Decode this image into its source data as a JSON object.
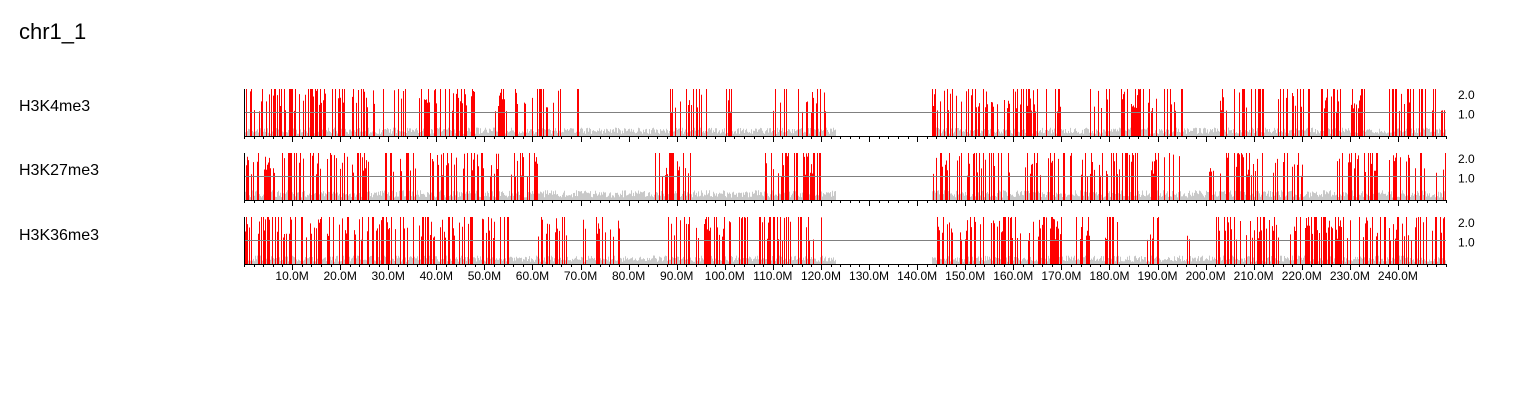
{
  "title": "chr1_1",
  "colors": {
    "signal": "#ff0000",
    "background": "#c8c8c8",
    "axis": "#000000",
    "reference_line": "#808080"
  },
  "chart_data": {
    "type": "area",
    "title": "chr1_1",
    "x_unit": "Mb",
    "xlim": [
      0,
      250
    ],
    "x_ticks": [
      10,
      20,
      30,
      40,
      50,
      60,
      70,
      80,
      90,
      100,
      110,
      120,
      130,
      140,
      150,
      160,
      170,
      180,
      190,
      200,
      210,
      220,
      230,
      240
    ],
    "x_tick_labels": [
      "10.0M",
      "20.0M",
      "30.0M",
      "40.0M",
      "50.0M",
      "60.0M",
      "70.0M",
      "80.0M",
      "90.0M",
      "100.0M",
      "110.0M",
      "120.0M",
      "130.0M",
      "140.0M",
      "150.0M",
      "160.0M",
      "170.0M",
      "180.0M",
      "190.0M",
      "200.0M",
      "210.0M",
      "220.0M",
      "230.0M",
      "240.0M"
    ],
    "ylim": [
      0,
      2.0
    ],
    "y_ticks": [
      1.0,
      2.0
    ],
    "y_tick_labels": [
      "1.0",
      "2.0"
    ],
    "reference_line": 1.0,
    "no_data_gap": [
      123,
      143
    ],
    "tracks": [
      {
        "name": "H3K4me3",
        "signal_regions": [
          [
            0,
            30
          ],
          [
            31,
            34
          ],
          [
            35,
            48
          ],
          [
            52,
            57
          ],
          [
            58,
            63
          ],
          [
            64,
            67
          ],
          [
            69,
            69.5
          ],
          [
            85,
            85.5
          ],
          [
            88,
            96
          ],
          [
            100,
            101.5
          ],
          [
            110,
            113
          ],
          [
            114,
            121
          ],
          [
            143,
            152
          ],
          [
            152,
            157
          ],
          [
            158,
            165
          ],
          [
            166,
            170
          ],
          [
            176,
            180
          ],
          [
            182,
            187
          ],
          [
            188,
            196
          ],
          [
            203,
            213
          ],
          [
            214,
            223
          ],
          [
            224,
            233
          ],
          [
            238,
            250
          ]
        ],
        "background_level": 0.3
      },
      {
        "name": "H3K27me3",
        "signal_regions": [
          [
            0,
            26
          ],
          [
            29,
            36
          ],
          [
            38,
            50
          ],
          [
            51,
            53
          ],
          [
            55,
            62
          ],
          [
            84,
            93
          ],
          [
            108,
            120
          ],
          [
            143,
            160
          ],
          [
            162,
            172
          ],
          [
            174,
            186
          ],
          [
            188,
            197
          ],
          [
            200,
            212
          ],
          [
            214,
            220
          ],
          [
            224,
            236
          ],
          [
            238,
            250
          ]
        ],
        "background_level": 0.35
      },
      {
        "name": "H3K36me3",
        "signal_regions": [
          [
            0,
            30
          ],
          [
            30,
            48
          ],
          [
            49,
            55
          ],
          [
            61,
            67
          ],
          [
            70,
            71
          ],
          [
            73,
            78
          ],
          [
            88,
            101
          ],
          [
            103,
            106
          ],
          [
            107,
            120
          ],
          [
            143,
            158
          ],
          [
            158,
            163
          ],
          [
            163,
            170
          ],
          [
            173,
            176
          ],
          [
            178,
            182
          ],
          [
            187,
            190
          ],
          [
            196,
            198
          ],
          [
            202,
            215
          ],
          [
            217,
            230
          ],
          [
            232,
            250
          ]
        ],
        "background_level": 0.3
      }
    ]
  }
}
